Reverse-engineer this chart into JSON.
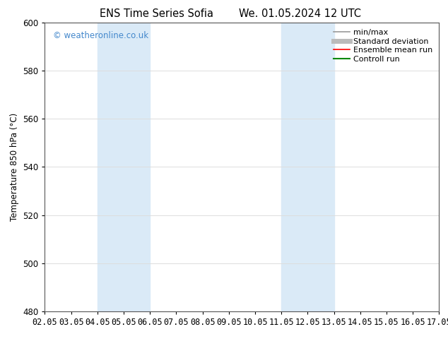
{
  "title_left": "ENS Time Series Sofia",
  "title_right": "We. 01.05.2024 12 UTC",
  "ylabel": "Temperature 850 hPa (°C)",
  "xlim": [
    0,
    15
  ],
  "ylim": [
    480,
    600
  ],
  "yticks": [
    480,
    500,
    520,
    540,
    560,
    580,
    600
  ],
  "xtick_labels": [
    "02.05",
    "03.05",
    "04.05",
    "05.05",
    "06.05",
    "07.05",
    "08.05",
    "09.05",
    "10.05",
    "11.05",
    "12.05",
    "13.05",
    "14.05",
    "15.05",
    "16.05",
    "17.05"
  ],
  "xtick_positions": [
    0,
    1,
    2,
    3,
    4,
    5,
    6,
    7,
    8,
    9,
    10,
    11,
    12,
    13,
    14,
    15
  ],
  "shaded_bands": [
    {
      "xmin": 2,
      "xmax": 4,
      "color": "#daeaf7"
    },
    {
      "xmin": 9,
      "xmax": 11,
      "color": "#daeaf7"
    }
  ],
  "watermark": "© weatheronline.co.uk",
  "watermark_color": "#4488cc",
  "legend_items": [
    {
      "label": "min/max",
      "color": "#999999",
      "lw": 1.2,
      "ls": "-"
    },
    {
      "label": "Standard deviation",
      "color": "#bbbbbb",
      "lw": 5,
      "ls": "-"
    },
    {
      "label": "Ensemble mean run",
      "color": "#ff0000",
      "lw": 1.2,
      "ls": "-"
    },
    {
      "label": "Controll run",
      "color": "#008800",
      "lw": 1.5,
      "ls": "-"
    }
  ],
  "background_color": "#ffffff",
  "grid_color": "#dddddd",
  "font_size": 8.5,
  "title_font_size": 10.5
}
